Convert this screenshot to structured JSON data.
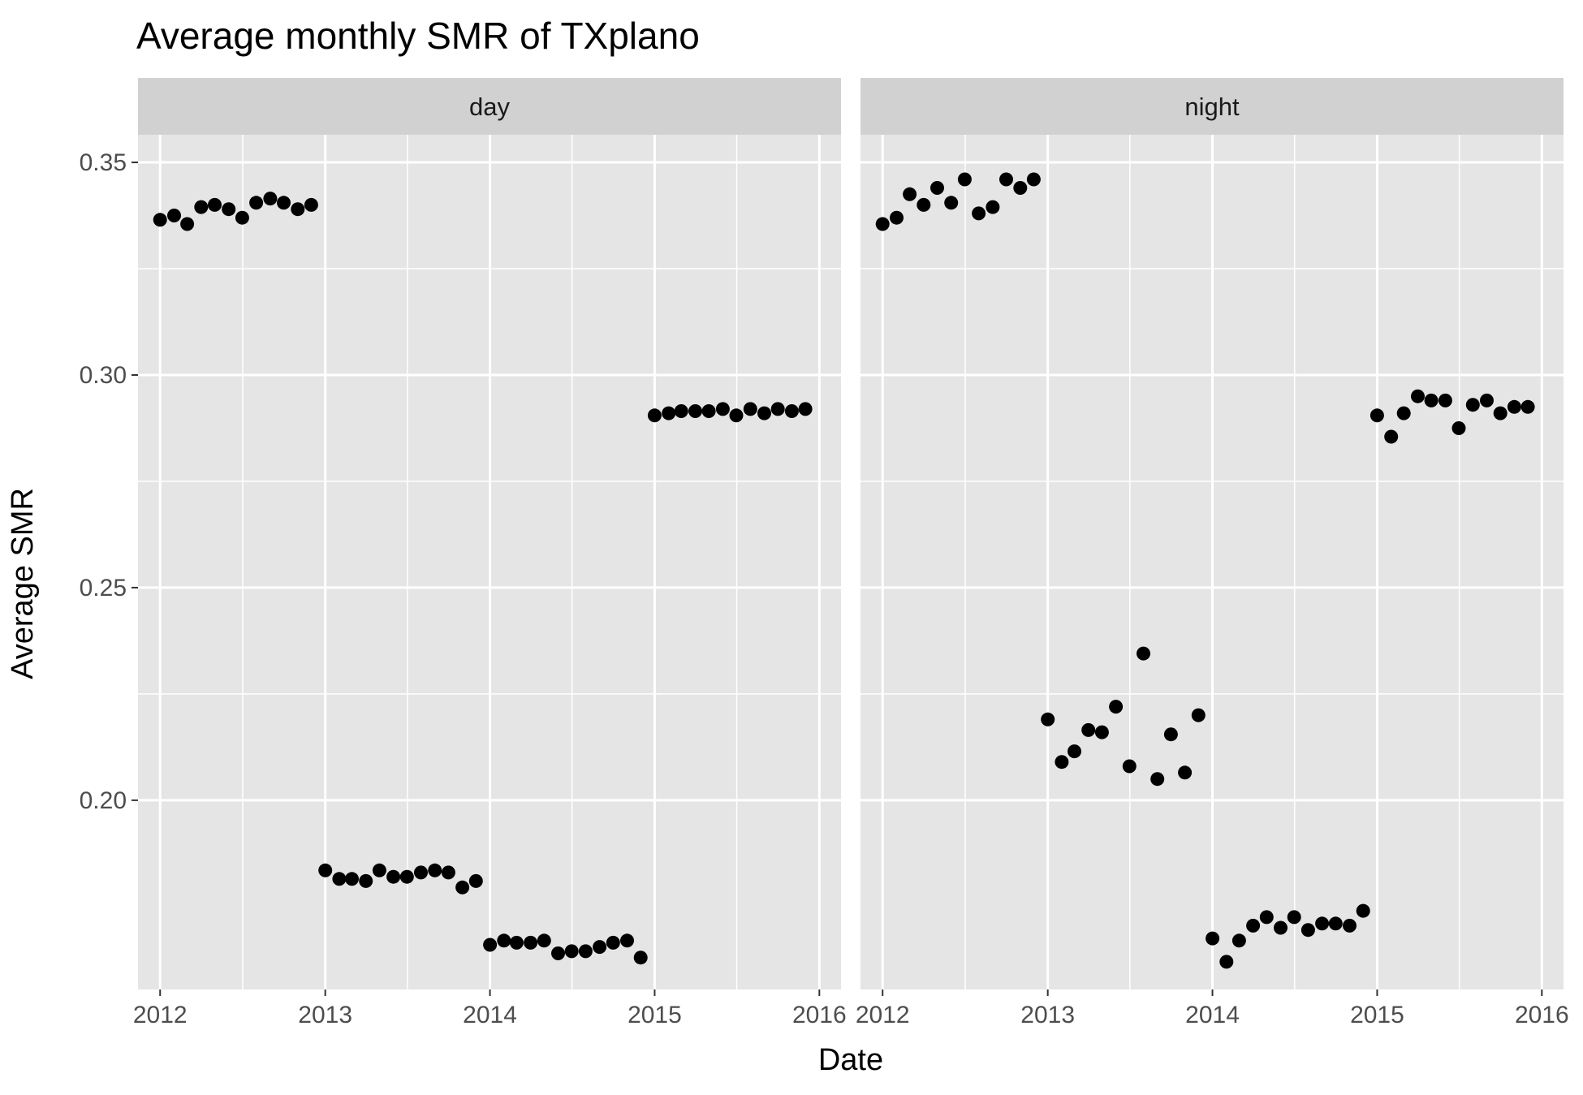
{
  "chart_data": {
    "type": "scatter",
    "title": "Average monthly SMR of TXplano",
    "xlabel": "Date",
    "ylabel": "Average SMR",
    "x_ticks": [
      "2012",
      "2013",
      "2014",
      "2015",
      "2016"
    ],
    "y_ticks": [
      "0.20",
      "0.25",
      "0.30",
      "0.35"
    ],
    "xlim": [
      "2011-11-13",
      "2016-02-18"
    ],
    "ylim": [
      0.1555,
      0.3565
    ],
    "grid": true,
    "legend": "none",
    "point_color": "#000000",
    "panel_background": "#e5e5e5",
    "strip_background": "#d1d1d1",
    "panels": [
      {
        "label": "day",
        "points": [
          {
            "date": "2012-01",
            "y": 0.3365
          },
          {
            "date": "2012-02",
            "y": 0.3375
          },
          {
            "date": "2012-03",
            "y": 0.3355
          },
          {
            "date": "2012-04",
            "y": 0.3395
          },
          {
            "date": "2012-05",
            "y": 0.34
          },
          {
            "date": "2012-06",
            "y": 0.339
          },
          {
            "date": "2012-07",
            "y": 0.337
          },
          {
            "date": "2012-08",
            "y": 0.3405
          },
          {
            "date": "2012-09",
            "y": 0.3415
          },
          {
            "date": "2012-10",
            "y": 0.3405
          },
          {
            "date": "2012-11",
            "y": 0.339
          },
          {
            "date": "2012-12",
            "y": 0.34
          },
          {
            "date": "2013-01",
            "y": 0.1835
          },
          {
            "date": "2013-02",
            "y": 0.1815
          },
          {
            "date": "2013-03",
            "y": 0.1815
          },
          {
            "date": "2013-04",
            "y": 0.181
          },
          {
            "date": "2013-05",
            "y": 0.1835
          },
          {
            "date": "2013-06",
            "y": 0.182
          },
          {
            "date": "2013-07",
            "y": 0.182
          },
          {
            "date": "2013-08",
            "y": 0.183
          },
          {
            "date": "2013-09",
            "y": 0.1835
          },
          {
            "date": "2013-10",
            "y": 0.183
          },
          {
            "date": "2013-11",
            "y": 0.1795
          },
          {
            "date": "2013-12",
            "y": 0.181
          },
          {
            "date": "2014-01",
            "y": 0.166
          },
          {
            "date": "2014-02",
            "y": 0.167
          },
          {
            "date": "2014-03",
            "y": 0.1665
          },
          {
            "date": "2014-04",
            "y": 0.1665
          },
          {
            "date": "2014-05",
            "y": 0.167
          },
          {
            "date": "2014-06",
            "y": 0.164
          },
          {
            "date": "2014-07",
            "y": 0.1645
          },
          {
            "date": "2014-08",
            "y": 0.1645
          },
          {
            "date": "2014-09",
            "y": 0.1655
          },
          {
            "date": "2014-10",
            "y": 0.1665
          },
          {
            "date": "2014-11",
            "y": 0.167
          },
          {
            "date": "2014-12",
            "y": 0.163
          },
          {
            "date": "2015-01",
            "y": 0.2905
          },
          {
            "date": "2015-02",
            "y": 0.291
          },
          {
            "date": "2015-03",
            "y": 0.2915
          },
          {
            "date": "2015-04",
            "y": 0.2915
          },
          {
            "date": "2015-05",
            "y": 0.2915
          },
          {
            "date": "2015-06",
            "y": 0.292
          },
          {
            "date": "2015-07",
            "y": 0.2905
          },
          {
            "date": "2015-08",
            "y": 0.292
          },
          {
            "date": "2015-09",
            "y": 0.291
          },
          {
            "date": "2015-10",
            "y": 0.292
          },
          {
            "date": "2015-11",
            "y": 0.2915
          },
          {
            "date": "2015-12",
            "y": 0.292
          }
        ]
      },
      {
        "label": "night",
        "points": [
          {
            "date": "2012-01",
            "y": 0.3355
          },
          {
            "date": "2012-02",
            "y": 0.337
          },
          {
            "date": "2012-03",
            "y": 0.3425
          },
          {
            "date": "2012-04",
            "y": 0.34
          },
          {
            "date": "2012-05",
            "y": 0.344
          },
          {
            "date": "2012-06",
            "y": 0.3405
          },
          {
            "date": "2012-07",
            "y": 0.346
          },
          {
            "date": "2012-08",
            "y": 0.338
          },
          {
            "date": "2012-09",
            "y": 0.3395
          },
          {
            "date": "2012-10",
            "y": 0.346
          },
          {
            "date": "2012-11",
            "y": 0.344
          },
          {
            "date": "2012-12",
            "y": 0.346
          },
          {
            "date": "2013-01",
            "y": 0.219
          },
          {
            "date": "2013-02",
            "y": 0.209
          },
          {
            "date": "2013-03",
            "y": 0.2115
          },
          {
            "date": "2013-04",
            "y": 0.2165
          },
          {
            "date": "2013-05",
            "y": 0.216
          },
          {
            "date": "2013-06",
            "y": 0.222
          },
          {
            "date": "2013-07",
            "y": 0.208
          },
          {
            "date": "2013-08",
            "y": 0.2345
          },
          {
            "date": "2013-09",
            "y": 0.205
          },
          {
            "date": "2013-10",
            "y": 0.2155
          },
          {
            "date": "2013-11",
            "y": 0.2065
          },
          {
            "date": "2013-12",
            "y": 0.22
          },
          {
            "date": "2014-01",
            "y": 0.1675
          },
          {
            "date": "2014-02",
            "y": 0.162
          },
          {
            "date": "2014-03",
            "y": 0.167
          },
          {
            "date": "2014-04",
            "y": 0.1705
          },
          {
            "date": "2014-05",
            "y": 0.1725
          },
          {
            "date": "2014-06",
            "y": 0.17
          },
          {
            "date": "2014-07",
            "y": 0.1725
          },
          {
            "date": "2014-08",
            "y": 0.1695
          },
          {
            "date": "2014-09",
            "y": 0.171
          },
          {
            "date": "2014-10",
            "y": 0.171
          },
          {
            "date": "2014-11",
            "y": 0.1705
          },
          {
            "date": "2014-12",
            "y": 0.174
          },
          {
            "date": "2015-01",
            "y": 0.2905
          },
          {
            "date": "2015-02",
            "y": 0.2855
          },
          {
            "date": "2015-03",
            "y": 0.291
          },
          {
            "date": "2015-04",
            "y": 0.295
          },
          {
            "date": "2015-05",
            "y": 0.294
          },
          {
            "date": "2015-06",
            "y": 0.294
          },
          {
            "date": "2015-07",
            "y": 0.2875
          },
          {
            "date": "2015-08",
            "y": 0.293
          },
          {
            "date": "2015-09",
            "y": 0.294
          },
          {
            "date": "2015-10",
            "y": 0.291
          },
          {
            "date": "2015-11",
            "y": 0.2925
          },
          {
            "date": "2015-12",
            "y": 0.2925
          }
        ]
      }
    ]
  }
}
